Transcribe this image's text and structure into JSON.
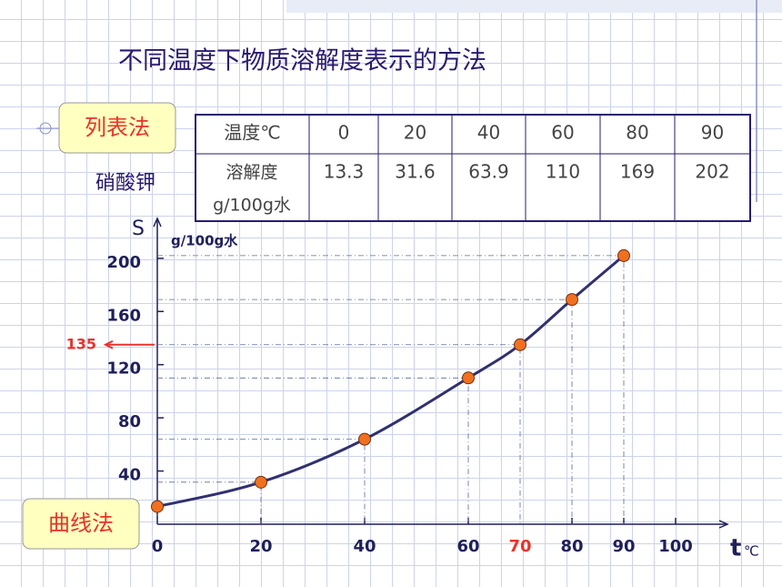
{
  "title": "不同温度下物质溶解度表示的方法",
  "table_method": "列表法",
  "substance": "硝酸钾",
  "curve_method": "曲线法",
  "table": {
    "header": [
      "温度℃",
      0,
      20,
      40,
      60,
      80,
      90
    ],
    "row_label": [
      "溶解度",
      "g/100g水"
    ],
    "values": [
      13.3,
      31.6,
      63.9,
      110,
      169,
      202
    ]
  },
  "chart_data": {
    "type": "line",
    "y_label": "S",
    "y_unit": "g/100g水",
    "x_label": "t",
    "x_unit": "℃",
    "x": [
      0,
      20,
      40,
      60,
      70,
      80,
      90
    ],
    "series": [
      {
        "name": "硝酸钾",
        "color": "#303070",
        "marker_color": "#f07020",
        "values": [
          13.3,
          31.6,
          63.9,
          110,
          135,
          169,
          202
        ]
      }
    ],
    "xlim": [
      0,
      110
    ],
    "ylim": [
      0,
      230
    ],
    "xticks": [
      0,
      20,
      40,
      60,
      80,
      90,
      100
    ],
    "yticks": [
      40,
      80,
      120,
      160,
      200
    ],
    "highlight": {
      "x": 70,
      "y": 135,
      "color": "#e8332a"
    }
  }
}
